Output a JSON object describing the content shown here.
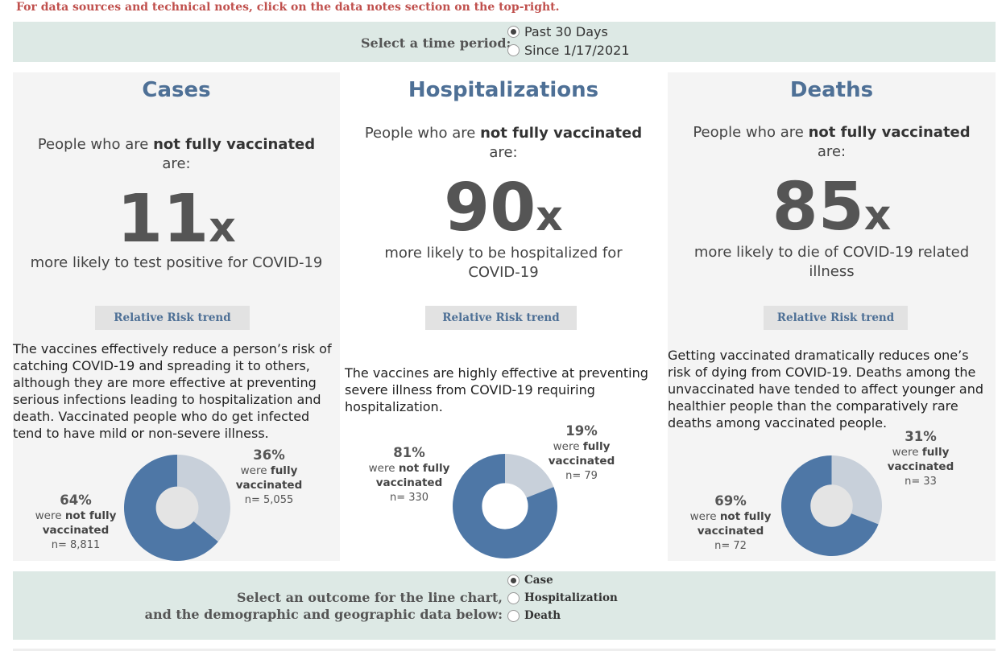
{
  "notice": "For data sources and technical notes, click on the data notes section on the top-right.",
  "time_selector": {
    "label": "Select a time period:",
    "options": [
      "Past 30 Days",
      "Since 1/17/2021"
    ],
    "selected": "Past 30 Days"
  },
  "panels": {
    "cases": {
      "title": "Cases",
      "lead_pre": "People who are ",
      "lead_bold": "not fully vaccinated",
      "lead_post": "are:",
      "multiplier": "11",
      "x": "x",
      "desc": "more likely to test positive for COVID-19",
      "button": "Relative Risk trend",
      "paragraph": "The vaccines effectively reduce a person’s risk of catching COVID-19 and spreading it to others, although they are more effective at preventing serious infections leading to hospitalization and death. Vaccinated people who do get infected tend to have mild or non-severe illness.",
      "not_vax": {
        "pct": "64%",
        "were": "were ",
        "bold": "not fully",
        "bold2": "vaccinated",
        "n": "n= 8,811",
        "value": 64
      },
      "vax": {
        "pct": "36%",
        "were": "were ",
        "bold": "fully",
        "bold2": "vaccinated",
        "n": "n= 5,055",
        "value": 36
      }
    },
    "hospitalizations": {
      "title": "Hospitalizations",
      "lead_pre": "People who are ",
      "lead_bold": "not fully vaccinated",
      "lead_post": "are:",
      "multiplier": "90",
      "x": "x",
      "desc": "more likely to be hospitalized for COVID-19",
      "button": "Relative Risk trend",
      "paragraph": "The vaccines are highly effective at preventing severe illness from COVID-19 requiring hospitalization.",
      "not_vax": {
        "pct": "81%",
        "were": "were ",
        "bold": "not fully",
        "bold2": "vaccinated",
        "n": "n= 330",
        "value": 81
      },
      "vax": {
        "pct": "19%",
        "were": "were ",
        "bold": "fully",
        "bold2": "vaccinated",
        "n": "n= 79",
        "value": 19
      }
    },
    "deaths": {
      "title": "Deaths",
      "lead_pre": "People who are ",
      "lead_bold": "not fully vaccinated",
      "lead_post": "are:",
      "multiplier": "85",
      "x": "x",
      "desc": "more likely to die of COVID-19 related illness",
      "button": "Relative Risk trend",
      "paragraph": "Getting vaccinated dramatically reduces one’s risk of dying from COVID-19. Deaths among the unvaccinated have tended to affect younger and healthier people than the comparatively rare deaths among vaccinated people.",
      "not_vax": {
        "pct": "69%",
        "were": "were ",
        "bold": "not fully",
        "bold2": "vaccinated",
        "n": "n= 72",
        "value": 69
      },
      "vax": {
        "pct": "31%",
        "were": "were ",
        "bold": "fully",
        "bold2": "vaccinated",
        "n": "n= 33",
        "value": 31
      }
    }
  },
  "outcome_selector": {
    "line1": "Select an outcome for the line chart,",
    "line2": "and the demographic and geographic data below:",
    "options": [
      "Case",
      "Hospitalization",
      "Death"
    ],
    "selected": "Case"
  },
  "colors": {
    "title_blue": "#4e7096",
    "not_vax": "#4e77a6",
    "vax": "#c8d0da",
    "teal_bar": "#dde9e5",
    "notice_red": "#c0504d"
  }
}
